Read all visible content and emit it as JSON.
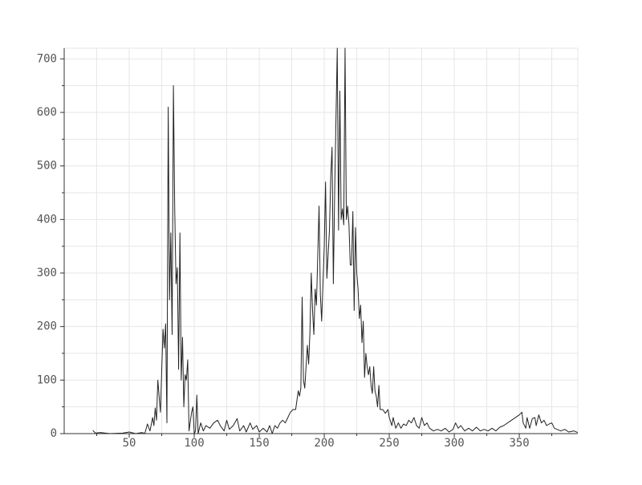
{
  "chart_data": {
    "type": "line",
    "x": [
      22,
      24,
      28,
      35,
      45,
      50,
      55,
      60,
      62,
      64,
      66,
      68,
      69,
      70,
      71,
      72,
      74,
      76,
      77,
      78,
      79,
      80,
      81,
      82,
      83,
      84,
      85,
      86,
      87,
      88,
      89,
      90,
      91,
      92,
      93,
      94,
      95,
      96,
      98,
      99,
      100,
      101,
      102,
      103,
      105,
      107,
      109,
      112,
      115,
      118,
      120,
      123,
      125,
      127,
      130,
      133,
      135,
      138,
      140,
      143,
      145,
      148,
      150,
      153,
      156,
      158,
      160,
      162,
      164,
      166,
      168,
      170,
      172,
      174,
      176,
      178,
      180,
      181,
      182,
      183,
      184,
      185,
      187,
      188,
      189,
      190,
      191,
      192,
      193,
      194,
      196,
      197,
      198,
      200,
      201,
      202,
      204,
      205,
      206,
      207,
      208,
      210,
      211,
      212,
      213,
      214,
      215,
      216,
      217,
      218,
      219,
      220,
      221,
      222,
      223,
      224,
      225,
      226,
      227,
      228,
      229,
      230,
      231,
      232,
      233,
      234,
      235,
      236,
      237,
      238,
      239,
      240,
      241,
      242,
      243,
      245,
      247,
      249,
      250,
      252,
      253,
      255,
      257,
      259,
      261,
      263,
      265,
      267,
      269,
      271,
      273,
      275,
      277,
      279,
      281,
      284,
      287,
      290,
      293,
      296,
      299,
      301,
      303,
      305,
      308,
      311,
      314,
      317,
      320,
      323,
      326,
      329,
      332,
      335,
      338,
      350,
      352,
      353,
      355,
      356,
      358,
      360,
      362,
      363,
      365,
      367,
      369,
      371,
      373,
      375,
      377,
      379,
      382,
      385,
      388,
      392,
      395
    ],
    "values": [
      6,
      1,
      2,
      0,
      1,
      3,
      0,
      2,
      0,
      18,
      5,
      30,
      15,
      48,
      25,
      100,
      40,
      195,
      160,
      205,
      20,
      610,
      250,
      375,
      185,
      650,
      420,
      280,
      310,
      120,
      375,
      100,
      180,
      50,
      110,
      100,
      138,
      5,
      40,
      50,
      0,
      5,
      72,
      0,
      20,
      5,
      15,
      10,
      20,
      25,
      15,
      5,
      25,
      8,
      15,
      28,
      5,
      15,
      3,
      20,
      8,
      15,
      3,
      10,
      3,
      15,
      0,
      15,
      10,
      20,
      25,
      20,
      30,
      40,
      45,
      45,
      80,
      70,
      85,
      255,
      100,
      85,
      165,
      130,
      190,
      300,
      230,
      185,
      270,
      240,
      425,
      260,
      210,
      350,
      470,
      290,
      380,
      480,
      535,
      280,
      450,
      720,
      380,
      640,
      400,
      420,
      390,
      720,
      400,
      425,
      390,
      315,
      315,
      415,
      230,
      385,
      300,
      270,
      215,
      240,
      170,
      210,
      105,
      150,
      125,
      110,
      125,
      90,
      75,
      125,
      80,
      70,
      50,
      90,
      45,
      45,
      38,
      45,
      30,
      15,
      30,
      10,
      20,
      10,
      18,
      15,
      25,
      20,
      30,
      15,
      10,
      30,
      15,
      20,
      10,
      5,
      8,
      5,
      10,
      3,
      8,
      20,
      10,
      15,
      5,
      10,
      5,
      12,
      5,
      8,
      5,
      10,
      5,
      12,
      15,
      35,
      40,
      20,
      10,
      30,
      10,
      28,
      30,
      15,
      35,
      20,
      25,
      15,
      18,
      20,
      10,
      8,
      5,
      8,
      3,
      5,
      2
    ],
    "color": "#222222",
    "xlim": [
      0,
      395
    ],
    "ylim": [
      0,
      720
    ],
    "xticks": [
      50,
      100,
      150,
      200,
      250,
      300,
      350
    ],
    "x_minor_ticks": [
      25,
      75,
      125,
      175,
      225,
      275,
      325,
      375
    ],
    "yticks": [
      0,
      100,
      200,
      300,
      400,
      500,
      600,
      700
    ],
    "y_minor_ticks": [
      50,
      150,
      250,
      350,
      450,
      550,
      650
    ],
    "grid": true
  }
}
